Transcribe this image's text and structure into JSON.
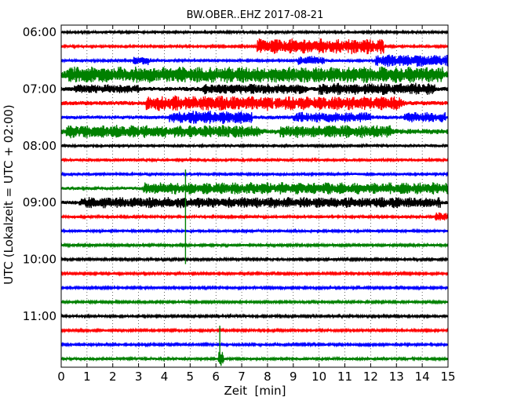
{
  "chart_data": {
    "type": "line",
    "title": "BW.OBER..EHZ 2017-08-21",
    "xlabel": "Zeit  [min]",
    "ylabel": "UTC (Lokalzeit = UTC + 02:00)",
    "xlim": [
      0,
      15
    ],
    "x_ticks": [
      "0",
      "1",
      "2",
      "3",
      "4",
      "5",
      "6",
      "7",
      "8",
      "9",
      "10",
      "11",
      "12",
      "13",
      "14",
      "15"
    ],
    "y_ticks": [
      {
        "label": "06:00",
        "row": 0
      },
      {
        "label": "07:00",
        "row": 4
      },
      {
        "label": "08:00",
        "row": 8
      },
      {
        "label": "09:00",
        "row": 12
      },
      {
        "label": "10:00",
        "row": 16
      },
      {
        "label": "11:00",
        "row": 20
      }
    ],
    "grid": "vertical dotted at each minute",
    "trace_interval_minutes": 15,
    "series_colors": [
      "#000000",
      "#ff0000",
      "#0000ff",
      "#008000"
    ],
    "traces": [
      {
        "start": "06:00",
        "color": "#000000",
        "noise": 0.5,
        "bursts": []
      },
      {
        "start": "06:15",
        "color": "#ff0000",
        "noise": 0.5,
        "bursts": [
          {
            "x": 7.6,
            "width": 4.9,
            "amp": 2.6
          }
        ]
      },
      {
        "start": "06:30",
        "color": "#0000ff",
        "noise": 0.5,
        "bursts": [
          {
            "x": 2.8,
            "width": 0.6,
            "amp": 1.4
          },
          {
            "x": 9.2,
            "width": 1.0,
            "amp": 1.3
          },
          {
            "x": 12.2,
            "width": 2.8,
            "amp": 2.0
          }
        ]
      },
      {
        "start": "06:45",
        "color": "#008000",
        "noise": 1.4,
        "bursts": [
          {
            "x": 0.2,
            "width": 14.6,
            "amp": 1.8
          }
        ]
      },
      {
        "start": "07:00",
        "color": "#000000",
        "noise": 0.8,
        "bursts": [
          {
            "x": 0.5,
            "width": 2.5,
            "amp": 1.0
          },
          {
            "x": 5.5,
            "width": 4.0,
            "amp": 1.3
          },
          {
            "x": 10.0,
            "width": 4.5,
            "amp": 1.6
          }
        ]
      },
      {
        "start": "07:15",
        "color": "#ff0000",
        "noise": 0.8,
        "bursts": [
          {
            "x": 3.3,
            "width": 4.9,
            "amp": 2.2
          },
          {
            "x": 8.3,
            "width": 5.0,
            "amp": 2.0
          }
        ]
      },
      {
        "start": "07:30",
        "color": "#0000ff",
        "noise": 0.7,
        "bursts": [
          {
            "x": 4.2,
            "width": 3.2,
            "amp": 1.9
          },
          {
            "x": 9.0,
            "width": 3.0,
            "amp": 1.4
          },
          {
            "x": 13.3,
            "width": 1.6,
            "amp": 1.4
          }
        ]
      },
      {
        "start": "07:45",
        "color": "#008000",
        "noise": 1.0,
        "bursts": [
          {
            "x": 0.2,
            "width": 7.5,
            "amp": 1.6
          },
          {
            "x": 8.5,
            "width": 4.3,
            "amp": 1.6
          }
        ]
      },
      {
        "start": "08:00",
        "color": "#000000",
        "noise": 0.55,
        "bursts": []
      },
      {
        "start": "08:15",
        "color": "#ff0000",
        "noise": 0.55,
        "bursts": []
      },
      {
        "start": "08:30",
        "color": "#0000ff",
        "noise": 0.55,
        "bursts": []
      },
      {
        "start": "08:45",
        "color": "#008000",
        "noise": 0.6,
        "bursts": [
          {
            "x": 3.2,
            "width": 11.8,
            "amp": 1.8
          }
        ]
      },
      {
        "start": "09:00",
        "color": "#000000",
        "noise": 0.7,
        "bursts": [
          {
            "x": 0.7,
            "width": 14.0,
            "amp": 1.5
          }
        ]
      },
      {
        "start": "09:15",
        "color": "#ff0000",
        "noise": 0.5,
        "bursts": [
          {
            "x": 14.5,
            "width": 0.5,
            "amp": 1.4
          }
        ]
      },
      {
        "start": "09:30",
        "color": "#0000ff",
        "noise": 0.5,
        "bursts": []
      },
      {
        "start": "09:45",
        "color": "#008000",
        "noise": 0.45,
        "bursts": []
      },
      {
        "start": "10:00",
        "color": "#000000",
        "noise": 0.45,
        "bursts": []
      },
      {
        "start": "10:15",
        "color": "#ff0000",
        "noise": 0.45,
        "bursts": []
      },
      {
        "start": "10:30",
        "color": "#0000ff",
        "noise": 0.45,
        "bursts": []
      },
      {
        "start": "10:45",
        "color": "#008000",
        "noise": 0.45,
        "bursts": []
      },
      {
        "start": "11:00",
        "color": "#000000",
        "noise": 0.45,
        "bursts": []
      },
      {
        "start": "11:15",
        "color": "#ff0000",
        "noise": 0.45,
        "bursts": []
      },
      {
        "start": "11:30",
        "color": "#0000ff",
        "noise": 0.45,
        "bursts": []
      },
      {
        "start": "11:45",
        "color": "#008000",
        "noise": 0.5,
        "bursts": [
          {
            "x": 6.1,
            "width": 0.2,
            "amp": 3.0
          }
        ]
      }
    ],
    "spikes": [
      {
        "x": 4.82,
        "from_trace": 10,
        "to_trace": 16,
        "color": "#008000"
      },
      {
        "x": 6.15,
        "from_trace": 21,
        "to_trace": 23,
        "color": "#008000"
      }
    ]
  }
}
